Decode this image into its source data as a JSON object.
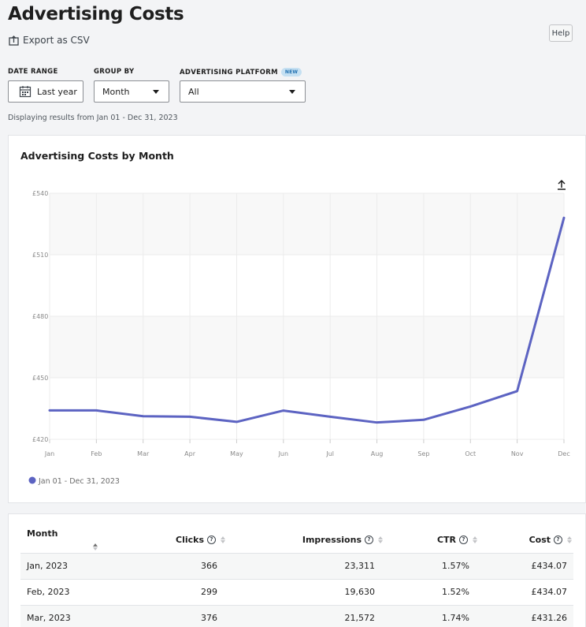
{
  "page": {
    "title": "Advertising Costs",
    "export_label": "Export as CSV",
    "help_label": "Help"
  },
  "filters": {
    "date_range_label": "DATE RANGE",
    "date_range_value": "Last year",
    "group_by_label": "GROUP BY",
    "group_by_value": "Month",
    "platform_label": "ADVERTISING PLATFORM",
    "platform_badge": "NEW",
    "platform_value": "All",
    "range_note": "Displaying results from Jan 01 - Dec 31, 2023"
  },
  "chart": {
    "title": "Advertising Costs by Month",
    "series_color": "#5c63c2"
  },
  "chart_data": {
    "type": "line",
    "title": "Advertising Costs by Month",
    "x": [
      "Jan",
      "Feb",
      "Mar",
      "Apr",
      "May",
      "Jun",
      "Jul",
      "Aug",
      "Sep",
      "Oct",
      "Nov",
      "Dec"
    ],
    "series": [
      {
        "name": "Jan 01 - Dec 31, 2023",
        "values": [
          434.07,
          434.07,
          431.26,
          431.0,
          428.5,
          434.0,
          431.0,
          428.2,
          429.5,
          436.0,
          443.5,
          528.0
        ]
      }
    ],
    "ylim": [
      420,
      540
    ],
    "yticks": [
      "£540",
      "£510",
      "£480",
      "£450",
      "£420"
    ],
    "ytick_values": [
      540,
      510,
      480,
      450,
      420
    ],
    "grid": true,
    "legend": "bottom-left"
  },
  "table": {
    "headers": [
      "Month",
      "Clicks",
      "Impressions",
      "CTR",
      "Cost"
    ],
    "rows": [
      [
        "Jan, 2023",
        "366",
        "23,311",
        "1.57%",
        "£434.07"
      ],
      [
        "Feb, 2023",
        "299",
        "19,630",
        "1.52%",
        "£434.07"
      ],
      [
        "Mar, 2023",
        "376",
        "21,572",
        "1.74%",
        "£431.26"
      ]
    ]
  }
}
